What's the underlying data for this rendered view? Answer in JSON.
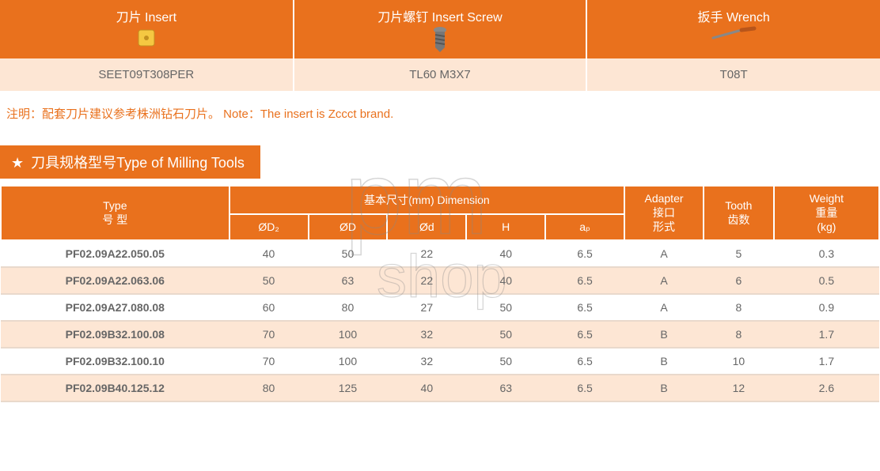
{
  "top_table": {
    "columns": [
      {
        "title_cn": "刀片",
        "title_en": "Insert",
        "value": "SEET09T308PER",
        "icon": "insert"
      },
      {
        "title_cn": "刀片螺钉",
        "title_en": "Insert Screw",
        "value": "TL60 M3X7",
        "icon": "screw"
      },
      {
        "title_cn": "扳手",
        "title_en": "Wrench",
        "value": "T08T",
        "icon": "wrench"
      }
    ],
    "header_bg": "#e9711d",
    "header_color": "#ffffff",
    "value_bg": "#fde6d4",
    "value_color": "#666666"
  },
  "note": {
    "text": "注明：配套刀片建议参考株洲钻石刀片。 Note：The insert is Zccct brand.",
    "color": "#e9711d"
  },
  "section": {
    "star": "★",
    "title_cn": "刀具规格型号",
    "title_en": "Type of Milling Tools",
    "bg": "#e9711d",
    "color": "#ffffff"
  },
  "specs": {
    "header_bg": "#e9711d",
    "header_color": "#ffffff",
    "row_even_bg": "#fde6d4",
    "row_odd_bg": "#ffffff",
    "border_color": "#e9d9cc",
    "headers": {
      "type": {
        "line1": "Type",
        "line2": "号 型"
      },
      "dimension": {
        "line1": "基本尺寸(mm) Dimension"
      },
      "d2": "ØD₂",
      "d": "ØD",
      "dsmall": "Ød",
      "h": "H",
      "ap": "aₚ",
      "adapter": {
        "line1": "Adapter",
        "line2": "接口",
        "line3": "形式"
      },
      "tooth": {
        "line1": "Tooth",
        "line2": "齿数"
      },
      "weight": {
        "line1": "Weight",
        "line2": "重量",
        "line3": "(kg)"
      }
    },
    "rows": [
      {
        "type": "PF02.09A22.050.05",
        "d2": "40",
        "d": "50",
        "dsmall": "22",
        "h": "40",
        "ap": "6.5",
        "adapter": "A",
        "tooth": "5",
        "weight": "0.3"
      },
      {
        "type": "PF02.09A22.063.06",
        "d2": "50",
        "d": "63",
        "dsmall": "22",
        "h": "40",
        "ap": "6.5",
        "adapter": "A",
        "tooth": "6",
        "weight": "0.5"
      },
      {
        "type": "PF02.09A27.080.08",
        "d2": "60",
        "d": "80",
        "dsmall": "27",
        "h": "50",
        "ap": "6.5",
        "adapter": "A",
        "tooth": "8",
        "weight": "0.9"
      },
      {
        "type": "PF02.09B32.100.08",
        "d2": "70",
        "d": "100",
        "dsmall": "32",
        "h": "50",
        "ap": "6.5",
        "adapter": "B",
        "tooth": "8",
        "weight": "1.7"
      },
      {
        "type": "PF02.09B32.100.10",
        "d2": "70",
        "d": "100",
        "dsmall": "32",
        "h": "50",
        "ap": "6.5",
        "adapter": "B",
        "tooth": "10",
        "weight": "1.7"
      },
      {
        "type": "PF02.09B40.125.12",
        "d2": "80",
        "d": "125",
        "dsmall": "40",
        "h": "63",
        "ap": "6.5",
        "adapter": "B",
        "tooth": "12",
        "weight": "2.6"
      }
    ],
    "col_widths": [
      "26%",
      "9%",
      "9%",
      "9%",
      "9%",
      "9%",
      "9%",
      "8%",
      "12%"
    ]
  },
  "watermark": {
    "line1": "pm",
    "line2": "shop",
    "color": "#888888",
    "font_size_1": 110,
    "font_size_2": 60
  }
}
